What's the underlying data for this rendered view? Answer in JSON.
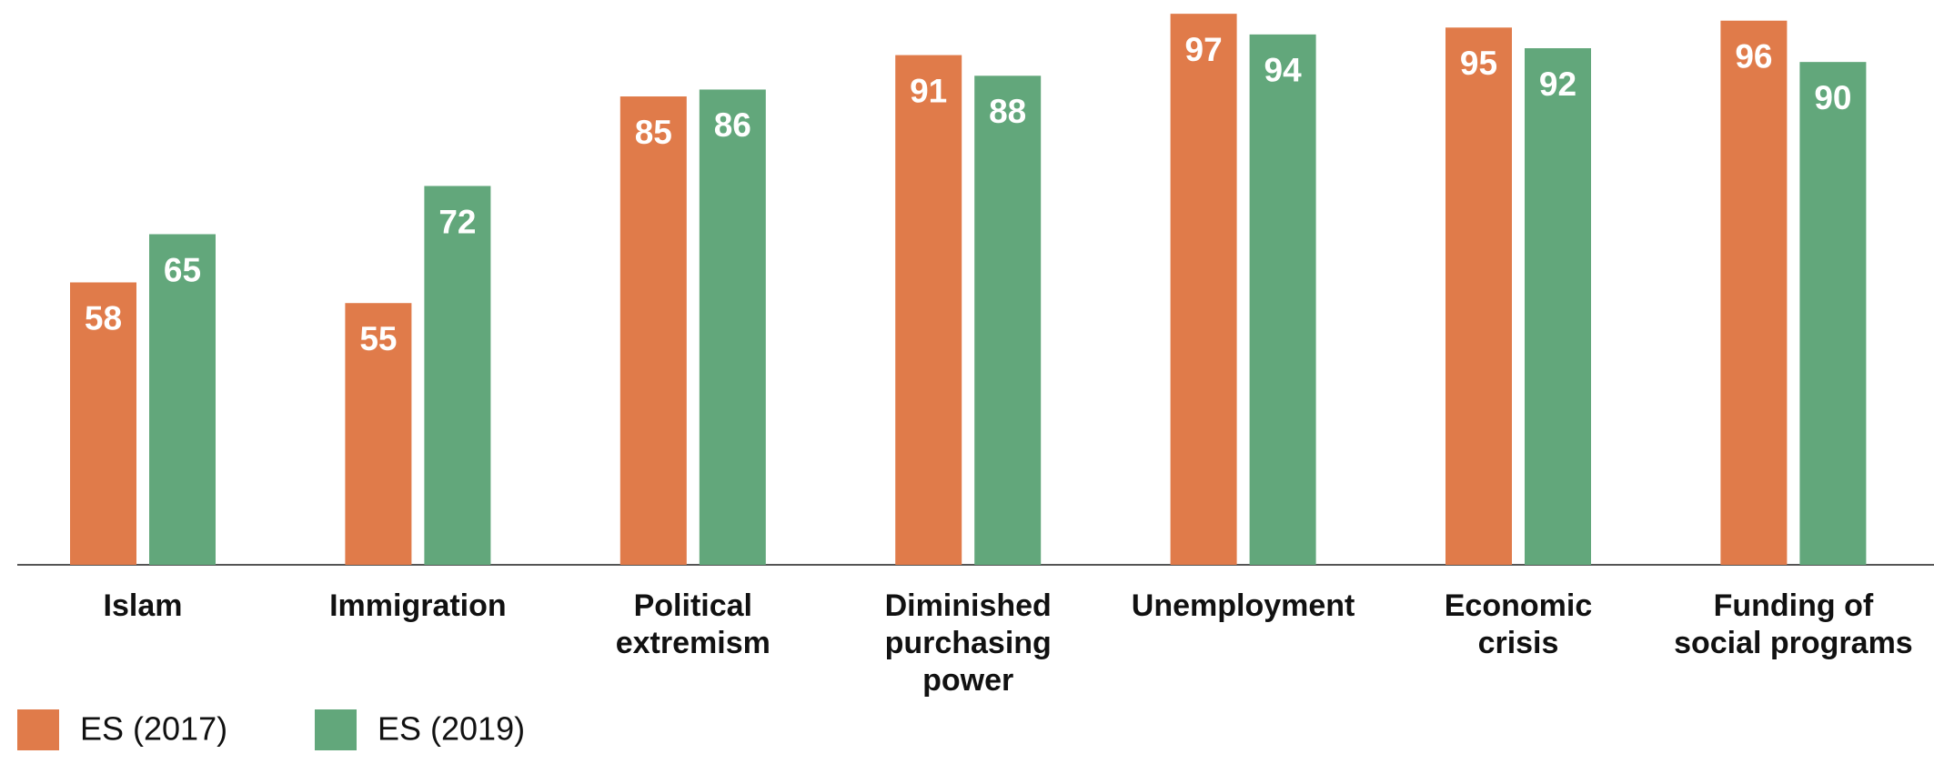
{
  "chart_data": {
    "type": "bar",
    "categories": [
      "Islam",
      "Immigration",
      "Political\nextremism",
      "Diminished\npurchasing\npower",
      "Unemployment",
      "Economic\ncrisis",
      "Funding of\nsocial programs"
    ],
    "series": [
      {
        "name": "ES (2017)",
        "color": "#e07b4a",
        "values": [
          58,
          55,
          85,
          91,
          97,
          95,
          96
        ]
      },
      {
        "name": "ES (2019)",
        "color": "#62a77b",
        "values": [
          65,
          72,
          86,
          88,
          94,
          92,
          90
        ]
      }
    ],
    "ylim": [
      17,
      99
    ],
    "legend": "bottom-left"
  }
}
